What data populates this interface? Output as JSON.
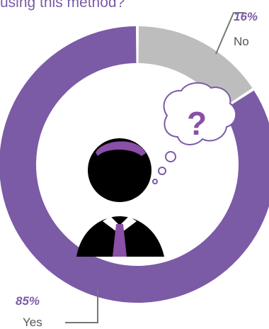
{
  "title": "using this method?",
  "colors": {
    "yes": "#7b5aa6",
    "no": "#bdbdbd",
    "person": "#000000",
    "accent": "#8a4fa6"
  },
  "chart_data": {
    "type": "pie",
    "variant": "donut",
    "title": "using this method?",
    "slices": [
      {
        "label": "No",
        "value": 16,
        "value_label": "16%",
        "color": "#bdbdbd"
      },
      {
        "label": "Yes",
        "value": 85,
        "value_label": "85%",
        "color": "#7b5aa6"
      }
    ]
  },
  "icons": [
    "person-icon",
    "thought-bubble-icon",
    "question-mark-icon"
  ],
  "thought_bubble": {
    "symbol": "?"
  }
}
